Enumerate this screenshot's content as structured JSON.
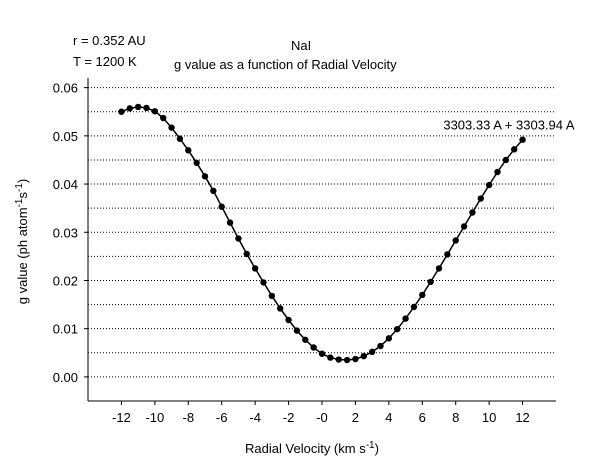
{
  "header": {
    "r_text": "r = 0.352 AU",
    "t_text": "T = 1200 K",
    "species": "NaI",
    "subtitle": "g value as a function of Radial Velocity"
  },
  "chart_data": {
    "type": "line",
    "title": "g value as a function of Radial Velocity",
    "xlabel": "Radial Velocity (km s⁻¹)",
    "ylabel": "g value (ph atom⁻¹s⁻¹)",
    "xlim": [
      -14,
      14
    ],
    "ylim": [
      -0.005,
      0.062
    ],
    "grid": "horizontal dotted",
    "line_color": "#000000",
    "marker": "filled circle",
    "annotation": "3303.33 A + 3303.94 A",
    "xticks": [
      -12,
      -10,
      -8,
      -6,
      -4,
      -2,
      0,
      2,
      4,
      6,
      8,
      10,
      12
    ],
    "xtick_labels": [
      "-12",
      "-10",
      "-8",
      "-6",
      "-4",
      "-2",
      "-0",
      "2",
      "4",
      "6",
      "8",
      "10",
      "12"
    ],
    "yticks": [
      0.0,
      0.01,
      0.02,
      0.03,
      0.04,
      0.05,
      0.06
    ],
    "ytick_labels": [
      "0.00",
      "0.01",
      "0.02",
      "0.03",
      "0.04",
      "0.05",
      "0.06"
    ],
    "gridlines": [
      -0.005,
      0.0,
      0.005,
      0.01,
      0.015,
      0.02,
      0.025,
      0.03,
      0.035,
      0.04,
      0.045,
      0.05,
      0.055,
      0.06
    ],
    "x": [
      -12.0,
      -11.5,
      -11.0,
      -10.5,
      -10.0,
      -9.5,
      -9.0,
      -8.5,
      -8.0,
      -7.5,
      -7.0,
      -6.5,
      -6.0,
      -5.5,
      -5.0,
      -4.5,
      -4.0,
      -3.5,
      -3.0,
      -2.5,
      -2.0,
      -1.5,
      -1.0,
      -0.5,
      0.0,
      0.5,
      1.0,
      1.5,
      2.0,
      2.5,
      3.0,
      3.5,
      4.0,
      4.5,
      5.0,
      5.5,
      6.0,
      6.5,
      7.0,
      7.5,
      8.0,
      8.5,
      9.0,
      9.5,
      10.0,
      10.5,
      11.0,
      11.5,
      12.0
    ],
    "y": [
      0.055,
      0.0557,
      0.056,
      0.0558,
      0.0551,
      0.0537,
      0.0517,
      0.0494,
      0.047,
      0.0444,
      0.0416,
      0.0386,
      0.0353,
      0.032,
      0.0287,
      0.0255,
      0.0225,
      0.0196,
      0.0168,
      0.0142,
      0.0118,
      0.0096,
      0.0077,
      0.0061,
      0.0048,
      0.004,
      0.0036,
      0.0035,
      0.0037,
      0.0043,
      0.0052,
      0.0064,
      0.008,
      0.0099,
      0.0121,
      0.0145,
      0.017,
      0.0197,
      0.0225,
      0.0254,
      0.0283,
      0.0312,
      0.0341,
      0.037,
      0.0398,
      0.0425,
      0.045,
      0.0472,
      0.0492
    ]
  }
}
